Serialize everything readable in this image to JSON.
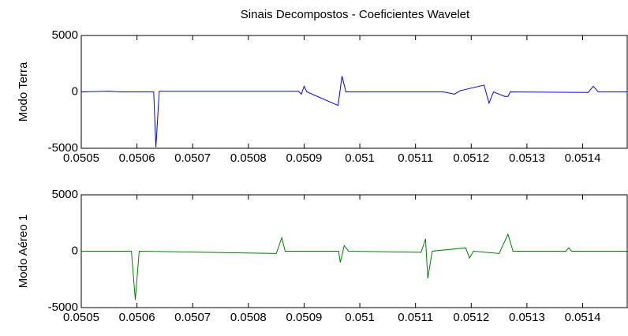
{
  "chart_data": [
    {
      "type": "line",
      "title": "Sinais Decompostos - Coeficientes Wavelet",
      "ylabel": "Modo Terra",
      "x": [
        0.0505,
        0.05055,
        0.05057,
        0.05063,
        0.050634,
        0.05064,
        0.05089,
        0.050895,
        0.0509,
        0.050905,
        0.050961,
        0.050968,
        0.050975,
        0.05115,
        0.05117,
        0.05118,
        0.051223,
        0.051232,
        0.05124,
        0.05126,
        0.051266,
        0.05127,
        0.05141,
        0.051419,
        0.051428,
        0.05148
      ],
      "series": [
        {
          "color": "#0000ff",
          "values": [
            0,
            60,
            0,
            0,
            -4900,
            50,
            50,
            -200,
            500,
            0,
            -1200,
            1400,
            0,
            0,
            -200,
            100,
            600,
            -1000,
            0,
            -400,
            -400,
            0,
            -50,
            500,
            0,
            0
          ]
        }
      ],
      "xlim": [
        0.0505,
        0.05148
      ],
      "xticks": [
        0.0505,
        0.0506,
        0.0507,
        0.0508,
        0.0509,
        0.051,
        0.0511,
        0.0512,
        0.0513,
        0.0514
      ],
      "ylim": [
        -5000,
        5000
      ],
      "yticks": [
        -5000,
        0,
        5000
      ]
    },
    {
      "type": "line",
      "ylabel": "Modo Aéreo 1",
      "x": [
        0.0505,
        0.05059,
        0.050597,
        0.050604,
        0.05085,
        0.05086,
        0.050866,
        0.050962,
        0.050965,
        0.050972,
        0.05098,
        0.05111,
        0.051118,
        0.051122,
        0.05113,
        0.05119,
        0.051197,
        0.051204,
        0.05125,
        0.051266,
        0.051275,
        0.05137,
        0.051375,
        0.05138,
        0.05148
      ],
      "series": [
        {
          "color": "#008000",
          "values": [
            0,
            0,
            -4300,
            0,
            -200,
            1200,
            0,
            0,
            -1000,
            500,
            0,
            -100,
            1100,
            -2400,
            0,
            300,
            -600,
            0,
            -200,
            1500,
            0,
            0,
            300,
            0,
            0
          ]
        }
      ],
      "xlim": [
        0.0505,
        0.05148
      ],
      "xticks": [
        0.0505,
        0.0506,
        0.0507,
        0.0508,
        0.0509,
        0.051,
        0.0511,
        0.0512,
        0.0513,
        0.0514
      ],
      "ylim": [
        -5000,
        5000
      ],
      "yticks": [
        -5000,
        0,
        5000
      ]
    }
  ]
}
